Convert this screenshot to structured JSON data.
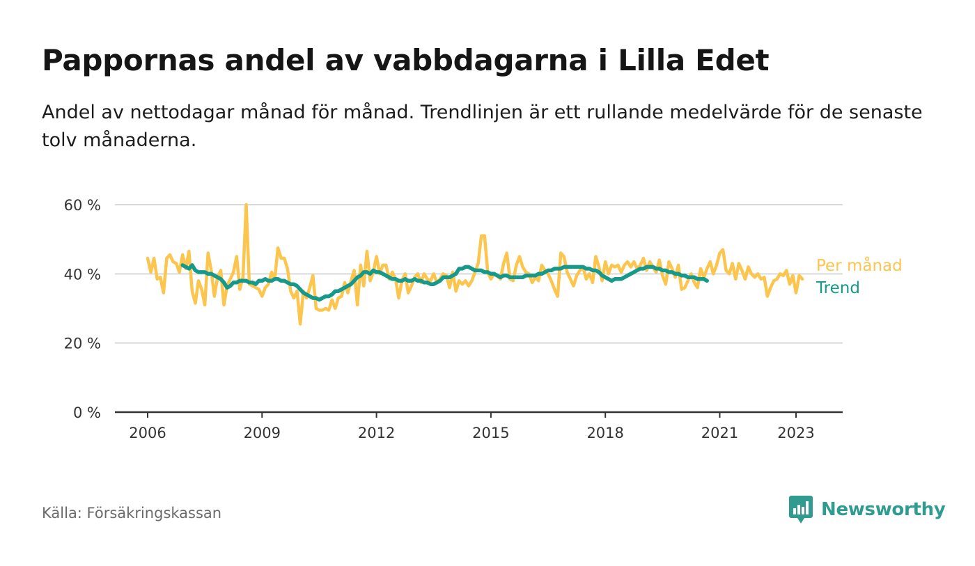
{
  "header": {
    "title": "Pappornas andel av vabbdagarna i Lilla Edet",
    "subtitle": "Andel av nettodagar månad för månad. Trendlinjen är ett rullande medelvärde för de senaste tolv månaderna."
  },
  "footer": {
    "source": "Källa: Försäkringskassan",
    "brand": "Newsworthy",
    "brand_icon": "newsworthy-bar-chart-icon"
  },
  "colors": {
    "monthly": "#fbc54e",
    "trend": "#16998a",
    "grid": "#d9d9d9",
    "axis": "#333333",
    "brand": "#2f9c8f"
  },
  "chart_data": {
    "type": "line",
    "title": "Pappornas andel av vabbdagarna i Lilla Edet",
    "xlabel": "",
    "ylabel": "",
    "ylim": [
      0,
      60
    ],
    "y_ticks": [
      0,
      20,
      40,
      60
    ],
    "y_tick_labels": [
      "0 %",
      "20 %",
      "40 %",
      "60 %"
    ],
    "x_ticks": [
      2006,
      2009,
      2012,
      2015,
      2018,
      2021,
      2023
    ],
    "x_tick_labels": [
      "2006",
      "2009",
      "2012",
      "2015",
      "2018",
      "2021",
      "2023"
    ],
    "grid": true,
    "legend_placement": "right end of lines (direct labels)",
    "series": [
      {
        "name": "Per månad",
        "x_start": "2006-01",
        "x_step": "month",
        "values": [
          44.5,
          40.5,
          44.5,
          38.5,
          39,
          34.5,
          44.5,
          45.5,
          43.5,
          43,
          40.5,
          45.5,
          41.5,
          46.5,
          35,
          31.5,
          38,
          35.5,
          31,
          46,
          41,
          33.5,
          39,
          41,
          31,
          36.5,
          38.5,
          40.5,
          45,
          35.5,
          39,
          60,
          37,
          36.5,
          36,
          35.5,
          33.5,
          36,
          37,
          40.5,
          38.5,
          47.5,
          44.5,
          44.5,
          41.5,
          35,
          33,
          35,
          25.5,
          35,
          33,
          36,
          39.5,
          30,
          29.5,
          29.5,
          30,
          29.5,
          32.5,
          30,
          33,
          33.5,
          37.5,
          34.5,
          38,
          41,
          31,
          42.5,
          36.5,
          46.5,
          38,
          40.5,
          45,
          40,
          42.5,
          42.5,
          38.5,
          40.5,
          38.5,
          33,
          38,
          40,
          34.5,
          36.5,
          39,
          40,
          37.5,
          40,
          38.5,
          38,
          40,
          37.5,
          38.5,
          40,
          39.5,
          36,
          40.5,
          35,
          38,
          37,
          38,
          36.5,
          38,
          40.5,
          43,
          51,
          51,
          40.5,
          38.5,
          40,
          39.5,
          38.5,
          43,
          46,
          38.5,
          38,
          42.5,
          45,
          42,
          40.5,
          40,
          37.5,
          39,
          38,
          42.5,
          41,
          40,
          38,
          35.5,
          33.5,
          46,
          45,
          40.5,
          38.5,
          36.5,
          39.5,
          41,
          42,
          38.5,
          40,
          37.5,
          45,
          42,
          38,
          43.5,
          40,
          42.5,
          42,
          42.5,
          40.5,
          42.5,
          43.5,
          42,
          43.5,
          41.5,
          42.5,
          44.5,
          41,
          43.5,
          42,
          40.5,
          44,
          39.5,
          37,
          43.5,
          41.5,
          39,
          42.5,
          35.5,
          36,
          38,
          40,
          37.5,
          36,
          41.5,
          39,
          41.5,
          43.5,
          40,
          42.5,
          46,
          47,
          41,
          40,
          43,
          38.5,
          43,
          41,
          38.5,
          42,
          40,
          39,
          40,
          38.5,
          39,
          33.5,
          36,
          38,
          38.5,
          40,
          39.5,
          41,
          37,
          39.5,
          34.5,
          39.5,
          38.5
        ]
      },
      {
        "name": "Trend",
        "x_start": "2006-12",
        "x_step": "month",
        "values": [
          42.5,
          42,
          41.5,
          42.5,
          41,
          40.5,
          40.5,
          40.5,
          40,
          40,
          39.5,
          39,
          38.5,
          37.5,
          36,
          36.5,
          37.5,
          37.5,
          38,
          38,
          38,
          37.5,
          37.5,
          37,
          38,
          38,
          38.5,
          38,
          38,
          38.5,
          38.5,
          38,
          38,
          37.5,
          37,
          37,
          36.5,
          35.5,
          34.5,
          34,
          33.5,
          33,
          33,
          32.5,
          33,
          33.5,
          33.5,
          34,
          35,
          35,
          35.5,
          36,
          36.5,
          37,
          38,
          39,
          39.5,
          40.5,
          40.5,
          40,
          41,
          40.5,
          40.5,
          40,
          39.5,
          39,
          38.5,
          38.5,
          38,
          38,
          38.5,
          38,
          38,
          38.5,
          38,
          38,
          37.5,
          37.5,
          37,
          37,
          37.5,
          38,
          39,
          39,
          39,
          39.5,
          40,
          41.5,
          41.5,
          42,
          42,
          41.5,
          41,
          41,
          41,
          40.5,
          40.5,
          40,
          40,
          39.5,
          39,
          39.5,
          39.5,
          39,
          39,
          39,
          39,
          39,
          39.5,
          39.5,
          39.5,
          39.5,
          40,
          40,
          40.5,
          41,
          41,
          41.5,
          41.5,
          41.5,
          42,
          42,
          42,
          42,
          42,
          42,
          42,
          41.5,
          41.5,
          41,
          41,
          40.5,
          39.5,
          39,
          38.5,
          38,
          38.5,
          38.5,
          38.5,
          39,
          39.5,
          40,
          40.5,
          41,
          41.5,
          41.5,
          42,
          42,
          42,
          41.5,
          41.5,
          41,
          41,
          40.5,
          40.5,
          40,
          40,
          39.5,
          39.5,
          39,
          39,
          39,
          38.5,
          38.5,
          38.5,
          38
        ]
      }
    ]
  }
}
